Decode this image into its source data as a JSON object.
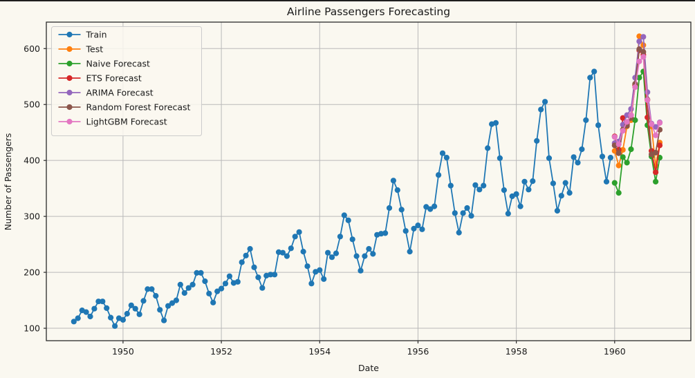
{
  "window": {
    "top_edge_color": "#1e1e1e"
  },
  "figure": {
    "background": "#faf8f0",
    "grid_color": "#b9b9b9",
    "spine_color": "#2a2a2a",
    "text_color": "#1a1a1a"
  },
  "chart_data": {
    "type": "line",
    "title": "Airline Passengers Forecasting",
    "xlabel": "Date",
    "ylabel": "Number of Passengers",
    "x_ticks": [
      1950,
      1952,
      1954,
      1956,
      1958,
      1960
    ],
    "y_ticks": [
      100,
      200,
      300,
      400,
      500,
      600
    ],
    "xlim": [
      1948.44,
      1961.55
    ],
    "ylim": [
      77.8,
      647.3
    ],
    "grid": true,
    "legend_position": "upper left",
    "points_frequency": "monthly",
    "series": [
      {
        "name": "Train",
        "color": "#1f77b4",
        "start_year": 1949.0,
        "values": [
          112,
          118,
          132,
          129,
          121,
          135,
          148,
          148,
          136,
          119,
          104,
          118,
          115,
          126,
          141,
          135,
          125,
          149,
          170,
          170,
          158,
          133,
          114,
          140,
          145,
          150,
          178,
          163,
          172,
          178,
          199,
          199,
          184,
          162,
          146,
          166,
          171,
          180,
          193,
          181,
          183,
          218,
          230,
          242,
          209,
          191,
          172,
          194,
          196,
          196,
          236,
          235,
          229,
          243,
          264,
          272,
          237,
          211,
          180,
          201,
          204,
          188,
          235,
          227,
          234,
          264,
          302,
          293,
          259,
          229,
          203,
          229,
          242,
          233,
          267,
          269,
          270,
          315,
          364,
          347,
          312,
          274,
          237,
          278,
          284,
          277,
          317,
          313,
          318,
          374,
          413,
          405,
          355,
          306,
          271,
          306,
          315,
          301,
          356,
          348,
          355,
          422,
          465,
          467,
          404,
          347,
          305,
          336,
          340,
          318,
          362,
          348,
          363,
          435,
          491,
          505,
          404,
          359,
          310,
          337,
          360,
          342,
          406,
          396,
          420,
          472,
          548,
          559,
          463,
          407,
          362,
          405
        ]
      },
      {
        "name": "Test",
        "color": "#ff7f0e",
        "start_year": 1960.0,
        "values": [
          417,
          391,
          419,
          461,
          472,
          535,
          622,
          606,
          508,
          461,
          390,
          432
        ]
      },
      {
        "name": "Naive Forecast",
        "color": "#2ca02c",
        "start_year": 1960.0,
        "values": [
          360,
          342,
          406,
          396,
          420,
          472,
          548,
          559,
          463,
          407,
          362,
          405
        ]
      },
      {
        "name": "ETS Forecast",
        "color": "#d62728",
        "start_year": 1960.0,
        "values": [
          443,
          419,
          476,
          465,
          481,
          534,
          597,
          589,
          477,
          417,
          379,
          427
        ]
      },
      {
        "name": "ARIMA Forecast",
        "color": "#9467bd",
        "start_year": 1960.0,
        "values": [
          431,
          434,
          464,
          481,
          492,
          548,
          613,
          621,
          522,
          466,
          460,
          468
        ]
      },
      {
        "name": "Random Forest Forecast",
        "color": "#8c564b",
        "start_year": 1960.0,
        "values": [
          427,
          413,
          455,
          462,
          476,
          537,
          599,
          594,
          509,
          411,
          414,
          455
        ]
      },
      {
        "name": "LightGBM Forecast",
        "color": "#e377c2",
        "start_year": 1960.0,
        "values": [
          442,
          429,
          453,
          469,
          481,
          531,
          577,
          585,
          508,
          465,
          445,
          467
        ]
      }
    ]
  }
}
